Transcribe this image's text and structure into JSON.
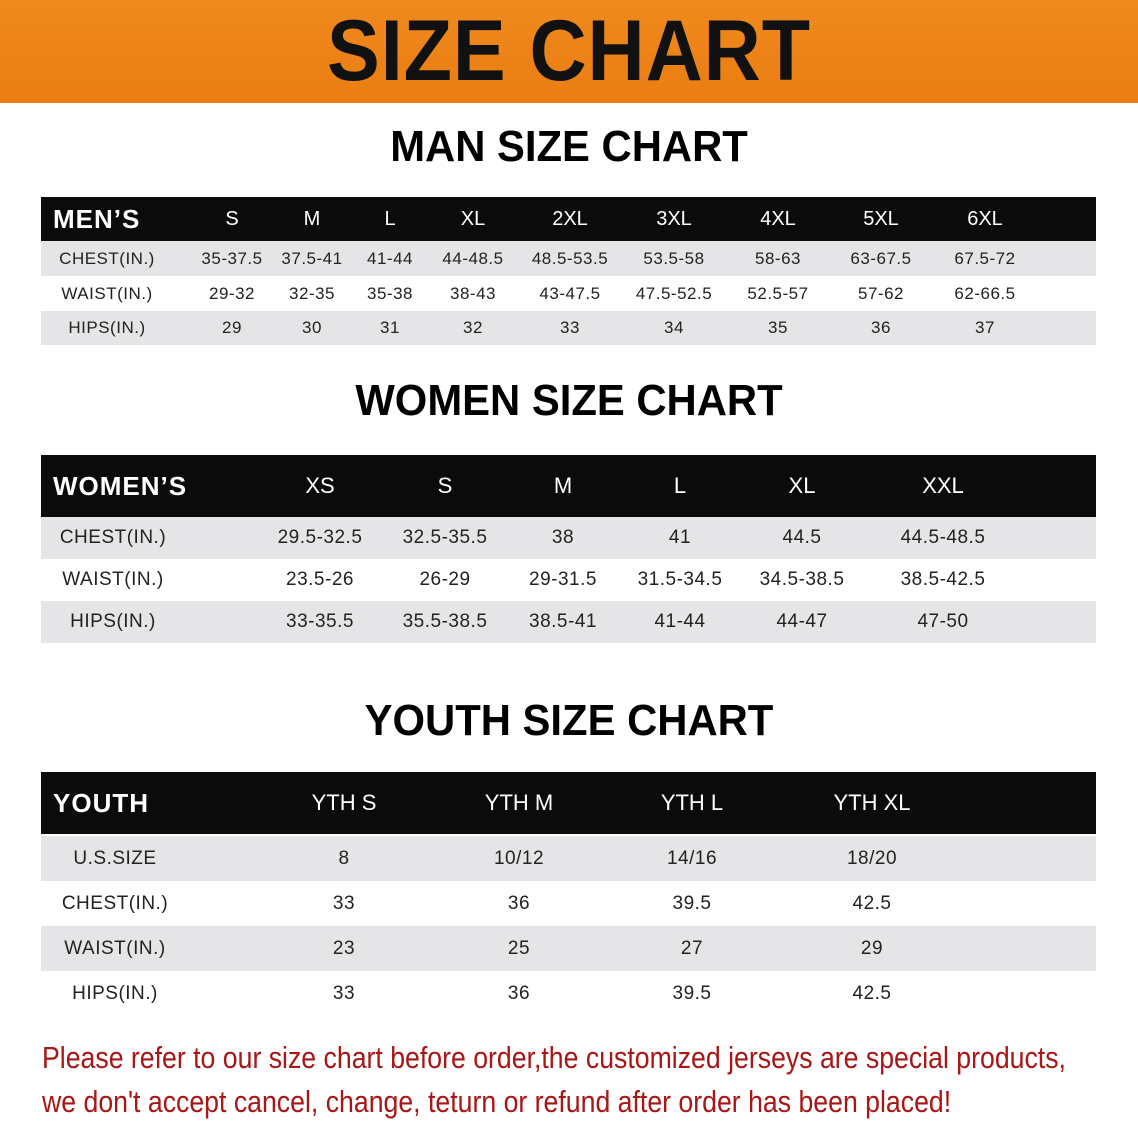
{
  "banner": {
    "title": "SIZE CHART"
  },
  "men": {
    "title": "MAN SIZE CHART",
    "headers": [
      "MEN’S",
      "S",
      "M",
      "L",
      "XL",
      "2XL",
      "3XL",
      "4XL",
      "5XL",
      "6XL"
    ],
    "rows": [
      [
        "CHEST(IN.)",
        "35-37.5",
        "37.5-41",
        "41-44",
        "44-48.5",
        "48.5-53.5",
        "53.5-58",
        "58-63",
        "63-67.5",
        "67.5-72"
      ],
      [
        "WAIST(IN.)",
        "29-32",
        "32-35",
        "35-38",
        "38-43",
        "43-47.5",
        "47.5-52.5",
        "52.5-57",
        "57-62",
        "62-66.5"
      ],
      [
        "HIPS(IN.)",
        "29",
        "30",
        "31",
        "32",
        "33",
        "34",
        "35",
        "36",
        "37"
      ]
    ]
  },
  "women": {
    "title": "WOMEN SIZE CHART",
    "headers": [
      "WOMEN’S",
      "XS",
      "S",
      "M",
      "L",
      "XL",
      "XXL"
    ],
    "rows": [
      [
        "CHEST(IN.)",
        "29.5-32.5",
        "32.5-35.5",
        "38",
        "41",
        "44.5",
        "44.5-48.5"
      ],
      [
        "WAIST(IN.)",
        "23.5-26",
        "26-29",
        "29-31.5",
        "31.5-34.5",
        "34.5-38.5",
        "38.5-42.5"
      ],
      [
        "HIPS(IN.)",
        "33-35.5",
        "35.5-38.5",
        "38.5-41",
        "41-44",
        "44-47",
        "47-50"
      ]
    ]
  },
  "youth": {
    "title": "YOUTH SIZE CHART",
    "headers": [
      "YOUTH",
      "YTH S",
      "YTH M",
      "YTH L",
      "YTH XL"
    ],
    "rows": [
      [
        "U.S.SIZE",
        "8",
        "10/12",
        "14/16",
        "18/20"
      ],
      [
        "CHEST(IN.)",
        "33",
        "36",
        "39.5",
        "42.5"
      ],
      [
        "WAIST(IN.)",
        "23",
        "25",
        "27",
        "29"
      ],
      [
        "HIPS(IN.)",
        "33",
        "36",
        "39.5",
        "42.5"
      ]
    ]
  },
  "note": {
    "line1": "Please refer to our size chart before order,the customized jerseys are special products,",
    "line2": "we don't accept cancel, change, teturn or refund after order has been placed!",
    "color": "#a81616"
  },
  "colors": {
    "banner": "#ee8418",
    "header": "#0b0b0b",
    "stripe": "#e5e5e7"
  }
}
